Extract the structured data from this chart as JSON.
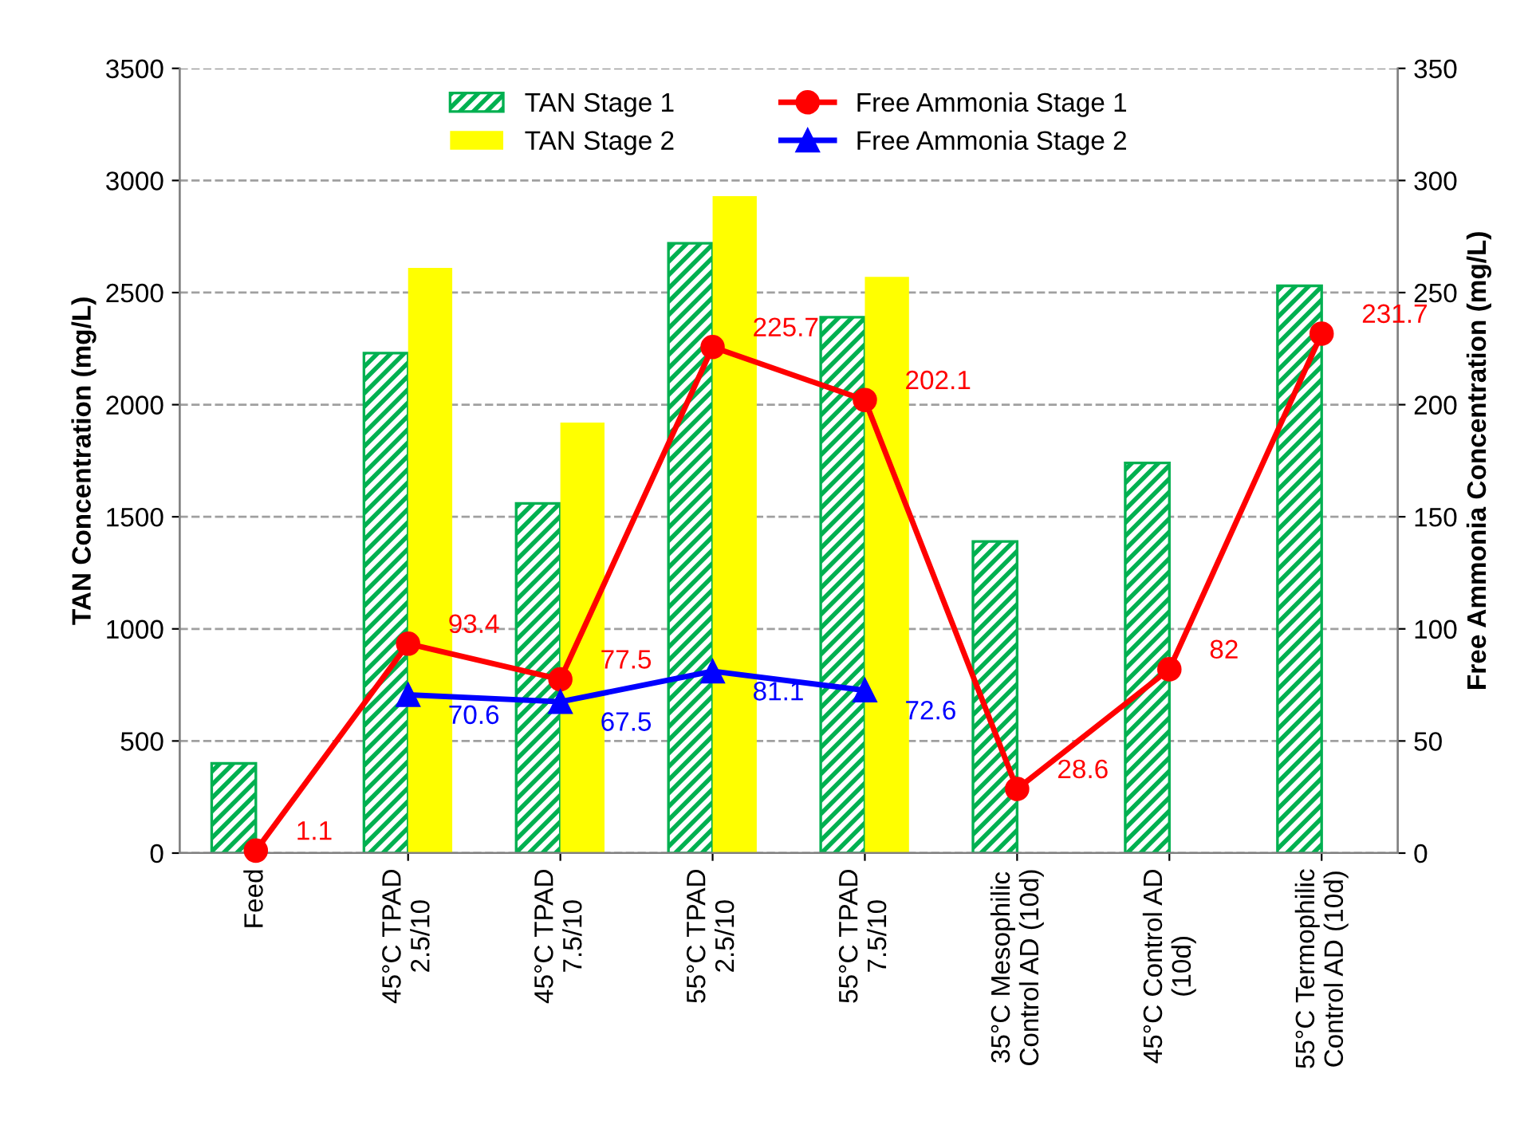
{
  "chart_data": {
    "type": "bar",
    "categories": [
      "Feed",
      "45°C TPAD\n2.5/10",
      "45°C TPAD\n7.5/10",
      "55°C TPAD\n2.5/10",
      "55°C TPAD\n7.5/10",
      "35°C Mesophilic\nControl AD (10d)",
      "45°C Control AD\n(10d)",
      "55°C Termophilic\nControl AD (10d)"
    ],
    "ylabel": "TAN Concentration (mg/L)",
    "y2label": "Free Ammonia Concentration (mg/L)",
    "ylim": [
      0,
      3500
    ],
    "yticks": [
      0,
      500,
      1000,
      1500,
      2000,
      2500,
      3000,
      3500
    ],
    "y2lim": [
      0,
      350
    ],
    "y2ticks": [
      0,
      50,
      100,
      150,
      200,
      250,
      300,
      350
    ],
    "grid": "y",
    "legend": "top",
    "series": [
      {
        "name": "TAN Stage 1",
        "color": "#00b050",
        "values": [
          400,
          2230,
          1560,
          2720,
          2390,
          1390,
          1740,
          2530
        ]
      },
      {
        "name": "TAN Stage 2",
        "color": "#ffff00",
        "values": [
          null,
          2610,
          1920,
          2930,
          2570,
          null,
          null,
          null
        ]
      },
      {
        "name": "Free Ammonia Stage 1",
        "type": "line",
        "axis": "y2",
        "marker": "circle",
        "color": "#ff0000",
        "values": [
          1.1,
          93.4,
          77.5,
          225.7,
          202.1,
          28.6,
          82,
          231.7
        ],
        "value_labels": [
          "1.1",
          "93.4",
          "77.5",
          "225.7",
          "202.1",
          "28.6",
          "82",
          "231.7"
        ]
      },
      {
        "name": "Free Ammonia Stage 2",
        "type": "line",
        "axis": "y2",
        "marker": "triangle",
        "color": "#0000ff",
        "values": [
          null,
          70.6,
          67.5,
          81.1,
          72.6,
          null,
          null,
          null
        ],
        "value_labels": [
          null,
          "70.6",
          "67.5",
          "81.1",
          "72.6",
          null,
          null,
          null
        ]
      }
    ]
  }
}
